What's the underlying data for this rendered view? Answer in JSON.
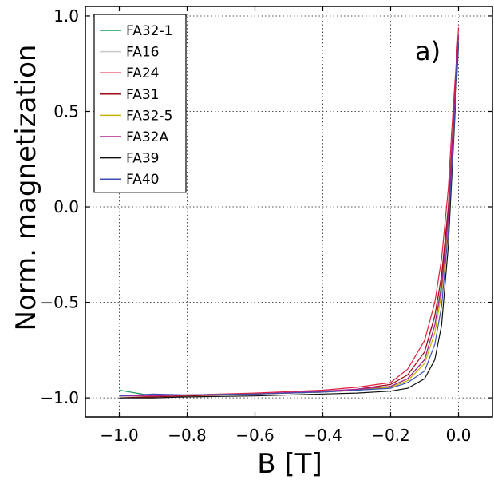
{
  "chart_data": {
    "type": "line",
    "title": "",
    "panel_label": "a)",
    "xlabel": "B [T]",
    "ylabel": "Norm. magnetization",
    "xlim": [
      -1.1,
      0.1
    ],
    "ylim": [
      -1.1,
      1.05
    ],
    "x_ticks": [
      -1.0,
      -0.8,
      -0.6,
      -0.4,
      -0.2,
      0.0
    ],
    "x_tick_labels": [
      "−1.0",
      "−0.8",
      "−0.6",
      "−0.4",
      "−0.2",
      "0.0"
    ],
    "y_ticks": [
      -1.0,
      -0.5,
      0.0,
      0.5,
      1.0
    ],
    "y_tick_labels": [
      "−1.0",
      "−0.5",
      "0.0",
      "0.5",
      "1.0"
    ],
    "grid": true,
    "legend_position": "top-left",
    "series": [
      {
        "name": "FA32-1",
        "color": "#1a9e5a",
        "x": [
          -1.0,
          -0.9,
          -0.8,
          -0.6,
          -0.4,
          -0.3,
          -0.2,
          -0.15,
          -0.1,
          -0.07,
          -0.05,
          -0.03,
          -0.02,
          -0.01,
          0.0
        ],
        "y": [
          -0.96,
          -0.99,
          -0.985,
          -0.98,
          -0.97,
          -0.96,
          -0.94,
          -0.9,
          -0.8,
          -0.62,
          -0.4,
          -0.02,
          0.3,
          0.6,
          0.9
        ]
      },
      {
        "name": "FA16",
        "color": "#c8c8c8",
        "x": [
          -1.0,
          -0.9,
          -0.8,
          -0.6,
          -0.4,
          -0.3,
          -0.2,
          -0.15,
          -0.1,
          -0.07,
          -0.05,
          -0.03,
          -0.02,
          -0.01,
          0.0
        ],
        "y": [
          -0.99,
          -0.99,
          -0.985,
          -0.98,
          -0.965,
          -0.955,
          -0.93,
          -0.88,
          -0.76,
          -0.58,
          -0.35,
          0.02,
          0.32,
          0.62,
          0.92
        ]
      },
      {
        "name": "FA24",
        "color": "#e0203c",
        "x": [
          -1.0,
          -0.9,
          -0.8,
          -0.6,
          -0.4,
          -0.3,
          -0.2,
          -0.15,
          -0.1,
          -0.07,
          -0.05,
          -0.03,
          -0.02,
          -0.01,
          0.0
        ],
        "y": [
          -0.99,
          -0.99,
          -0.985,
          -0.975,
          -0.96,
          -0.945,
          -0.92,
          -0.85,
          -0.7,
          -0.5,
          -0.27,
          0.1,
          0.4,
          0.67,
          0.94
        ]
      },
      {
        "name": "FA31",
        "color": "#a00a14",
        "x": [
          -1.0,
          -0.9,
          -0.8,
          -0.6,
          -0.4,
          -0.3,
          -0.2,
          -0.15,
          -0.1,
          -0.07,
          -0.05,
          -0.03,
          -0.02,
          -0.01,
          0.0
        ],
        "y": [
          -1.0,
          -0.995,
          -0.99,
          -0.98,
          -0.97,
          -0.955,
          -0.93,
          -0.88,
          -0.76,
          -0.57,
          -0.36,
          0.0,
          0.3,
          0.6,
          0.9
        ]
      },
      {
        "name": "FA32-5",
        "color": "#c8b400",
        "x": [
          -1.0,
          -0.9,
          -0.8,
          -0.6,
          -0.4,
          -0.3,
          -0.2,
          -0.15,
          -0.1,
          -0.07,
          -0.05,
          -0.03,
          -0.02,
          -0.01,
          0.0
        ],
        "y": [
          -0.99,
          -0.99,
          -0.985,
          -0.98,
          -0.97,
          -0.96,
          -0.945,
          -0.91,
          -0.82,
          -0.66,
          -0.45,
          -0.08,
          0.24,
          0.56,
          0.88
        ]
      },
      {
        "name": "FA32A",
        "color": "#b01e9a",
        "x": [
          -1.0,
          -0.9,
          -0.8,
          -0.6,
          -0.4,
          -0.3,
          -0.2,
          -0.15,
          -0.1,
          -0.07,
          -0.05,
          -0.03,
          -0.02,
          -0.01,
          0.0
        ],
        "y": [
          -0.99,
          -0.99,
          -0.985,
          -0.98,
          -0.965,
          -0.955,
          -0.94,
          -0.9,
          -0.8,
          -0.62,
          -0.42,
          -0.05,
          0.27,
          0.58,
          0.9
        ]
      },
      {
        "name": "FA39",
        "color": "#111111",
        "x": [
          -1.0,
          -0.9,
          -0.8,
          -0.6,
          -0.4,
          -0.3,
          -0.2,
          -0.15,
          -0.1,
          -0.07,
          -0.05,
          -0.03,
          -0.02,
          -0.01,
          0.0
        ],
        "y": [
          -1.0,
          -1.0,
          -0.995,
          -0.99,
          -0.98,
          -0.975,
          -0.965,
          -0.95,
          -0.9,
          -0.8,
          -0.62,
          -0.2,
          0.15,
          0.5,
          0.85
        ]
      },
      {
        "name": "FA40",
        "color": "#3c50b4",
        "x": [
          -1.0,
          -0.9,
          -0.8,
          -0.6,
          -0.4,
          -0.3,
          -0.2,
          -0.15,
          -0.1,
          -0.07,
          -0.05,
          -0.03,
          -0.02,
          -0.01,
          0.0
        ],
        "y": [
          -0.99,
          -0.98,
          -0.985,
          -0.98,
          -0.97,
          -0.96,
          -0.95,
          -0.92,
          -0.86,
          -0.72,
          -0.52,
          -0.12,
          0.2,
          0.52,
          0.86
        ]
      }
    ]
  }
}
